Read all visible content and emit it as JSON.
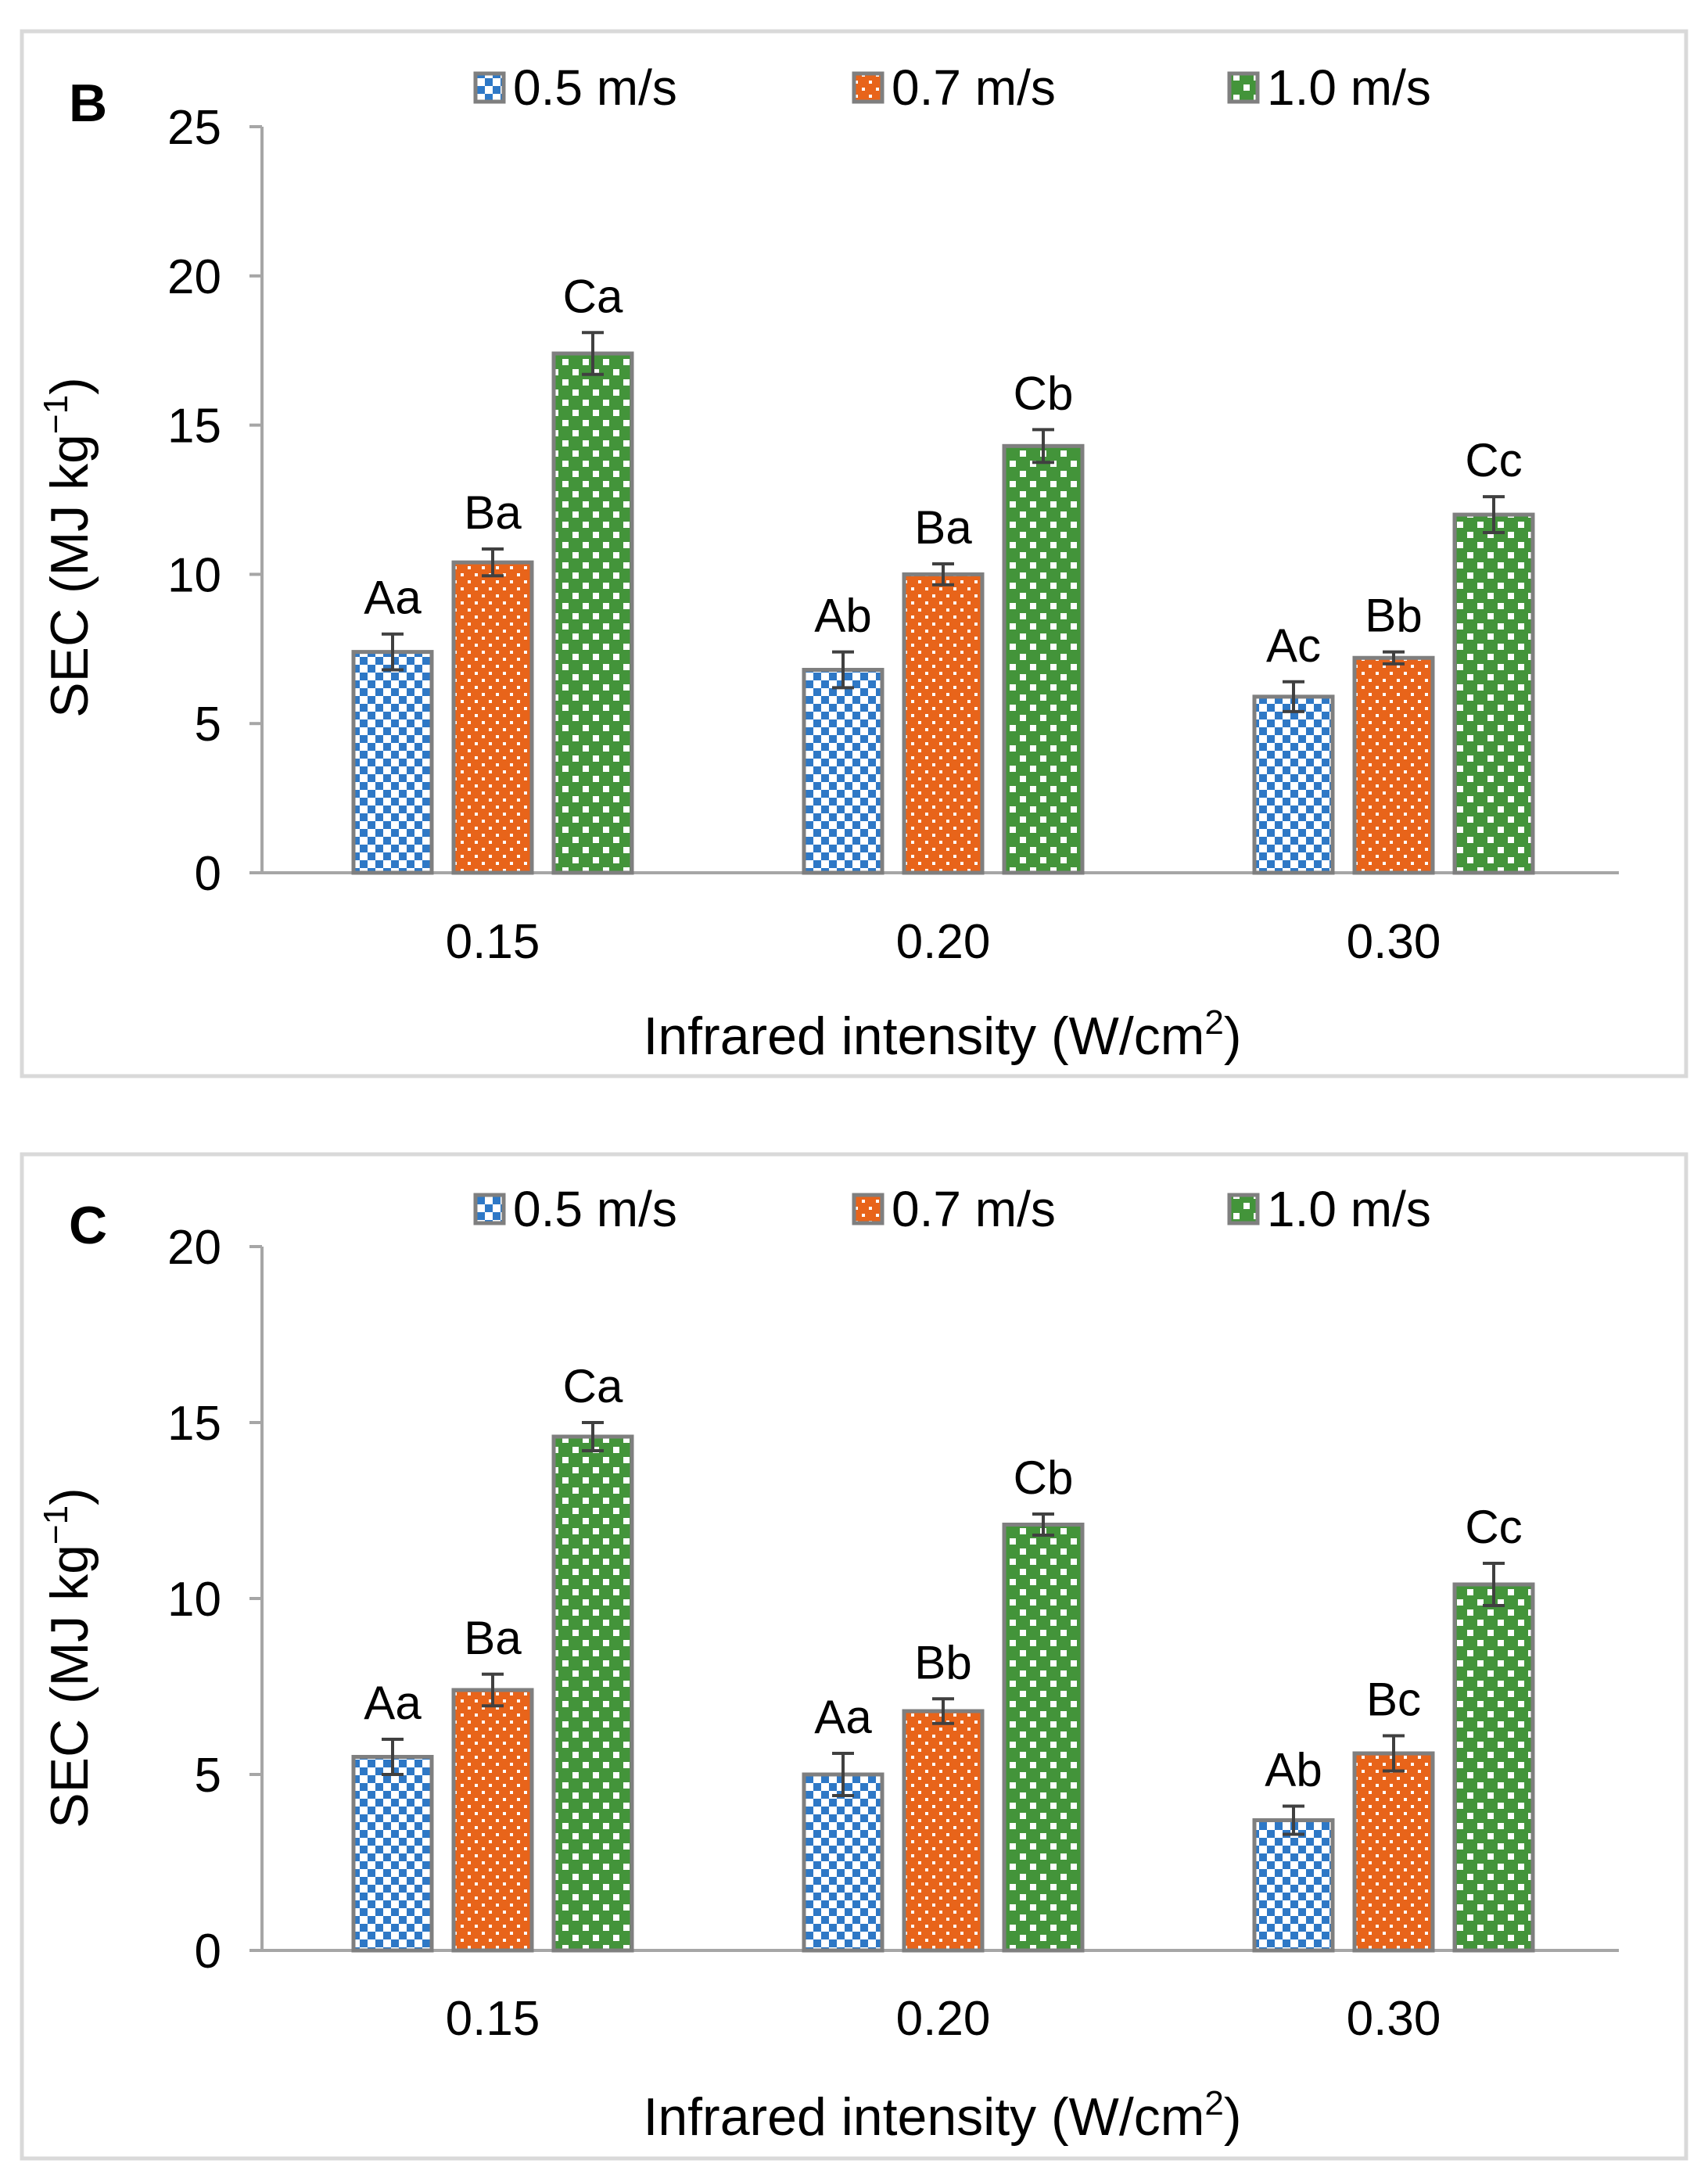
{
  "chart_data": [
    {
      "type": "bar",
      "panel_label": "B",
      "categories": [
        "0.15",
        "0.20",
        "0.30"
      ],
      "series": [
        {
          "name": "0.5 m/s",
          "values": [
            7.4,
            6.8,
            5.9
          ],
          "errors": [
            0.6,
            0.6,
            0.5
          ],
          "letters": [
            "Aa",
            "Ab",
            "Ac"
          ],
          "color": "#2e78c6",
          "pattern": "checker"
        },
        {
          "name": "0.7 m/s",
          "values": [
            10.4,
            10.0,
            7.2
          ],
          "errors": [
            0.45,
            0.35,
            0.2
          ],
          "letters": [
            "Ba",
            "Ba",
            "Bb"
          ],
          "color": "#e8641a",
          "pattern": "dots"
        },
        {
          "name": "1.0 m/s",
          "values": [
            17.4,
            14.3,
            12.0
          ],
          "errors": [
            0.7,
            0.55,
            0.6
          ],
          "letters": [
            "Ca",
            "Cb",
            "Cc"
          ],
          "color": "#43943a",
          "pattern": "bigchecker"
        }
      ],
      "xlabel": "Infrared intensity (W/cm",
      "xlabel_sup": "2",
      "xlabel_end": ")",
      "ylabel": "SEC (MJ kg",
      "ylabel_sup": "−1",
      "ylabel_end": ")",
      "ylim": [
        0,
        25
      ],
      "yticks": [
        0,
        5,
        10,
        15,
        20,
        25
      ],
      "legend": "top",
      "grid": false
    },
    {
      "type": "bar",
      "panel_label": "C",
      "categories": [
        "0.15",
        "0.20",
        "0.30"
      ],
      "series": [
        {
          "name": "0.5 m/s",
          "values": [
            5.5,
            5.0,
            3.7
          ],
          "errors": [
            0.5,
            0.6,
            0.4
          ],
          "letters": [
            "Aa",
            "Aa",
            "Ab"
          ],
          "color": "#2e78c6",
          "pattern": "checker"
        },
        {
          "name": "0.7 m/s",
          "values": [
            7.4,
            6.8,
            5.6
          ],
          "errors": [
            0.45,
            0.35,
            0.5
          ],
          "letters": [
            "Ba",
            "Bb",
            "Bc"
          ],
          "color": "#e8641a",
          "pattern": "dots"
        },
        {
          "name": "1.0 m/s",
          "values": [
            14.6,
            12.1,
            10.4
          ],
          "errors": [
            0.4,
            0.3,
            0.6
          ],
          "letters": [
            "Ca",
            "Cb",
            "Cc"
          ],
          "color": "#43943a",
          "pattern": "bigchecker"
        }
      ],
      "xlabel": "Infrared intensity (W/cm",
      "xlabel_sup": "2",
      "xlabel_end": ")",
      "ylabel": "SEC (MJ kg",
      "ylabel_sup": "−1",
      "ylabel_end": ")",
      "ylim": [
        0,
        20
      ],
      "yticks": [
        0,
        5,
        10,
        15,
        20
      ],
      "legend": "top",
      "grid": false
    }
  ]
}
